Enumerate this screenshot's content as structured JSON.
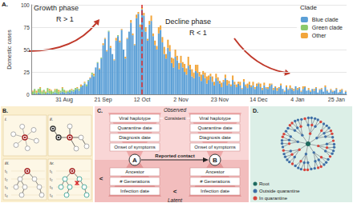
{
  "chart_data": {
    "type": "bar",
    "title": "A.",
    "stacked": true,
    "grid": true,
    "legend": "top-right",
    "legend_title": "Clade",
    "ylabel": "Domestic cases",
    "ylim": [
      0,
      100
    ],
    "yticks": [
      0,
      25,
      50,
      75,
      100
    ],
    "vline": "12 Oct",
    "annotations": [
      "Growth phase",
      "R > 1",
      "Decline phase",
      "R < 1"
    ],
    "categories": [
      null,
      null,
      null,
      null,
      null,
      null,
      null,
      null,
      null,
      null,
      null,
      null,
      null,
      null,
      null,
      null,
      null,
      "31 Aug",
      null,
      null,
      null,
      null,
      null,
      null,
      null,
      null,
      null,
      null,
      null,
      null,
      null,
      null,
      null,
      null,
      null,
      null,
      null,
      null,
      "21 Sep",
      null,
      null,
      null,
      null,
      null,
      null,
      null,
      null,
      null,
      null,
      null,
      null,
      null,
      null,
      null,
      null,
      null,
      null,
      null,
      null,
      "12 Oct",
      null,
      null,
      null,
      null,
      null,
      null,
      null,
      null,
      null,
      null,
      null,
      null,
      null,
      null,
      null,
      null,
      null,
      null,
      null,
      null,
      "2 Nov",
      null,
      null,
      null,
      null,
      null,
      null,
      null,
      null,
      null,
      null,
      null,
      null,
      null,
      null,
      null,
      null,
      null,
      null,
      null,
      null,
      "23 Nov",
      null,
      null,
      null,
      null,
      null,
      null,
      null,
      null,
      null,
      null,
      null,
      null,
      null,
      null,
      null,
      null,
      null,
      null,
      null,
      null,
      "14 Dec",
      null,
      null,
      null,
      null,
      null,
      null,
      null,
      null,
      null,
      null,
      null,
      null,
      null,
      null,
      null,
      null,
      null,
      null,
      null,
      null,
      "4 Jan",
      null,
      null,
      null,
      null,
      null,
      null,
      null,
      null,
      null,
      null,
      null,
      null,
      null,
      null,
      null,
      null,
      null,
      null,
      null,
      null,
      "25 Jan",
      null,
      null,
      null,
      null,
      null
    ],
    "series": [
      {
        "name": "Blue clade",
        "color": "#5b9fd6",
        "values": [
          0,
          1,
          0,
          2,
          1,
          0,
          1,
          0,
          2,
          1,
          0,
          1,
          2,
          1,
          0,
          2,
          3,
          2,
          1,
          3,
          2,
          4,
          3,
          5,
          6,
          4,
          8,
          10,
          12,
          9,
          15,
          18,
          22,
          20,
          30,
          35,
          28,
          40,
          55,
          62,
          48,
          70,
          52,
          45,
          38,
          60,
          65,
          58,
          72,
          50,
          40,
          62,
          70,
          80,
          66,
          55,
          85,
          90,
          75,
          95,
          88,
          70,
          60,
          78,
          82,
          65,
          55,
          50,
          68,
          72,
          58,
          45,
          40,
          52,
          48,
          35,
          30,
          42,
          38,
          28,
          35,
          30,
          25,
          22,
          32,
          28,
          20,
          18,
          26,
          24,
          20,
          15,
          22,
          18,
          12,
          16,
          20,
          14,
          10,
          18,
          15,
          12,
          8,
          14,
          18,
          10,
          12,
          9,
          16,
          11,
          8,
          12,
          10,
          6,
          14,
          9,
          7,
          11,
          8,
          10,
          6,
          9,
          12,
          8,
          5,
          10,
          7,
          6,
          9,
          11,
          5,
          8,
          4,
          7,
          10,
          6,
          3,
          8,
          5,
          7,
          6,
          4,
          9,
          5,
          7,
          3,
          6,
          8,
          4,
          5,
          3,
          6,
          4,
          7,
          2,
          5,
          6,
          3,
          8,
          4,
          2,
          5,
          3,
          4,
          6,
          2,
          3,
          5,
          1,
          3
        ]
      },
      {
        "name": "Green clade",
        "color": "#8cc96b",
        "values": [
          3,
          5,
          2,
          4,
          6,
          3,
          4,
          2,
          5,
          3,
          4,
          2,
          3,
          5,
          3,
          2,
          4,
          3,
          2,
          1,
          3,
          1,
          2,
          2,
          1,
          2,
          1,
          0,
          1,
          2,
          1,
          0,
          2,
          1,
          0,
          1,
          0,
          1,
          0,
          0,
          0,
          1,
          0,
          0,
          0,
          0,
          1,
          0,
          0,
          0,
          0,
          0,
          0,
          0,
          0,
          0,
          0,
          0,
          0,
          0,
          0,
          0,
          0,
          0,
          0,
          0,
          0,
          0,
          0,
          0,
          0,
          0,
          0,
          0,
          0,
          0,
          0,
          0,
          0,
          0,
          0,
          0,
          0,
          0,
          0,
          0,
          0,
          0,
          0,
          0,
          0,
          0,
          0,
          0,
          0,
          0,
          0,
          0,
          0,
          0,
          0,
          0,
          0,
          0,
          0,
          0,
          0,
          0,
          0,
          0,
          0,
          0,
          0,
          0,
          0,
          0,
          0,
          0,
          0,
          0,
          0,
          0,
          0,
          0,
          0,
          0,
          0,
          0,
          0,
          0,
          0,
          0,
          0,
          0,
          0,
          0,
          0,
          0,
          0,
          0,
          0,
          0,
          0,
          0,
          0,
          0,
          0,
          0,
          0,
          0,
          0,
          0,
          0,
          0,
          0,
          0,
          0,
          0,
          0,
          0,
          0,
          0,
          0,
          0,
          0,
          0,
          0,
          0,
          0,
          0
        ]
      },
      {
        "name": "Other",
        "color": "#f2a53a",
        "values": [
          1,
          0,
          2,
          0,
          1,
          1,
          0,
          1,
          0,
          2,
          1,
          0,
          1,
          0,
          2,
          0,
          1,
          0,
          1,
          0,
          0,
          1,
          0,
          0,
          1,
          0,
          2,
          0,
          1,
          0,
          0,
          1,
          0,
          2,
          0,
          0,
          1,
          0,
          2,
          1,
          1,
          0,
          2,
          0,
          1,
          3,
          0,
          2,
          1,
          0,
          2,
          1,
          0,
          3,
          2,
          1,
          4,
          2,
          3,
          2,
          3,
          5,
          2,
          4,
          6,
          3,
          5,
          4,
          7,
          5,
          6,
          8,
          5,
          9,
          7,
          6,
          10,
          8,
          5,
          7,
          8,
          6,
          9,
          7,
          10,
          5,
          8,
          6,
          7,
          9,
          5,
          7,
          4,
          6,
          8,
          5,
          3,
          6,
          4,
          5,
          4,
          3,
          5,
          2,
          4,
          6,
          3,
          2,
          5,
          3,
          3,
          2,
          4,
          1,
          3,
          2,
          5,
          3,
          2,
          4,
          2,
          3,
          1,
          4,
          2,
          3,
          1,
          2,
          3,
          1,
          2,
          1,
          3,
          1,
          2,
          0,
          1,
          2,
          1,
          3,
          1,
          2,
          0,
          2,
          1,
          1,
          3,
          1,
          0,
          2,
          1,
          0,
          2,
          1,
          0,
          1,
          1,
          0,
          2,
          1,
          0,
          1,
          1,
          0,
          1,
          0,
          2,
          1,
          0,
          1
        ]
      }
    ]
  },
  "panel_b": {
    "label": "B.",
    "subpanels": [
      "i.",
      "ii.",
      "iii.",
      "iv."
    ],
    "time_labels": [
      "t₁",
      "t₂",
      "t₃",
      "t₄"
    ]
  },
  "panel_c": {
    "label": "C.",
    "observed": "Observed",
    "latent": "Latent",
    "observed_fields": [
      "Viral haplotype",
      "Quarantine date",
      "Diagnosis date",
      "Onset of symptoms"
    ],
    "latent_fields": [
      "Ancestor",
      "# Generations",
      "Infection date"
    ],
    "cases": [
      "A",
      "B"
    ],
    "haplotype_relation": "Consistent",
    "contact_relation": "Reported contact",
    "order_relations": [
      "<",
      "<"
    ]
  },
  "panel_d": {
    "label": "D.",
    "legend": [
      {
        "name": "Root",
        "color": "#1f6b5f"
      },
      {
        "name": "Outside quarantine",
        "color": "#3f6fa6"
      },
      {
        "name": "In quarantine",
        "color": "#d6453d"
      }
    ]
  }
}
